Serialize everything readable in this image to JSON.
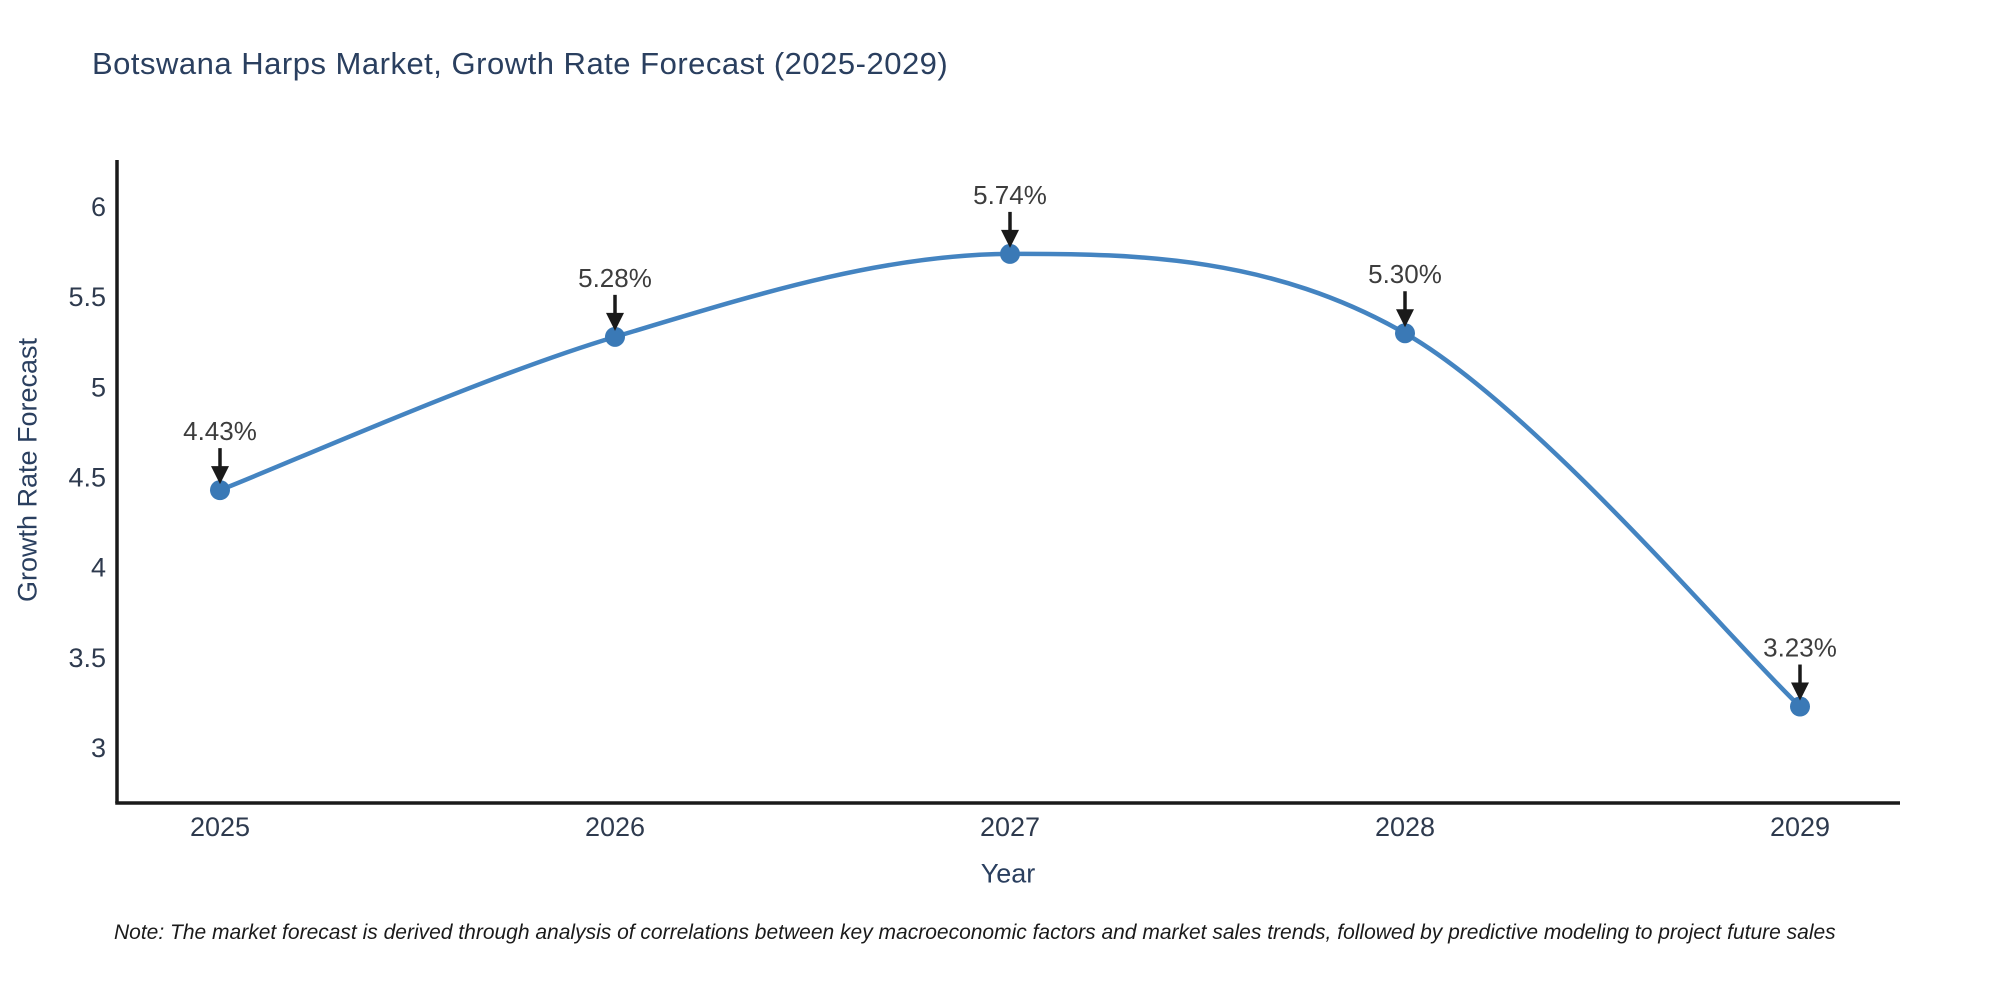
{
  "title": "Botswana Harps Market, Growth Rate Forecast (2025-2029)",
  "note": "Note: The market forecast is derived through analysis of correlations between key macroeconomic factors and market sales trends, followed by predictive modeling to project future sales",
  "chart_data": {
    "type": "line",
    "title": "Botswana Harps Market, Growth Rate Forecast (2025-2029)",
    "xlabel": "Year",
    "ylabel": "Growth Rate Forecast",
    "x": [
      2025,
      2026,
      2027,
      2028,
      2029
    ],
    "values": [
      4.43,
      5.28,
      5.74,
      5.3,
      3.23
    ],
    "point_labels": [
      "4.43%",
      "5.28%",
      "5.74%",
      "5.30%",
      "3.23%"
    ],
    "yticks": [
      3,
      3.5,
      4,
      4.5,
      5,
      5.5,
      6
    ],
    "ylim": [
      2.69,
      6.27
    ],
    "xlim": [
      2024.74,
      2029.25
    ],
    "line_shape": "spline",
    "grid": false,
    "legend": "none",
    "colors": {
      "line": "#4484c1",
      "marker": "#3a79b6",
      "axis": "#1a1a1a",
      "tick_text": "#2e3a4e",
      "annotation_text": "#3d3d3d",
      "arrow": "#1a1a1a",
      "title_text": "#2a3f5f",
      "background": "#ffffff"
    }
  }
}
